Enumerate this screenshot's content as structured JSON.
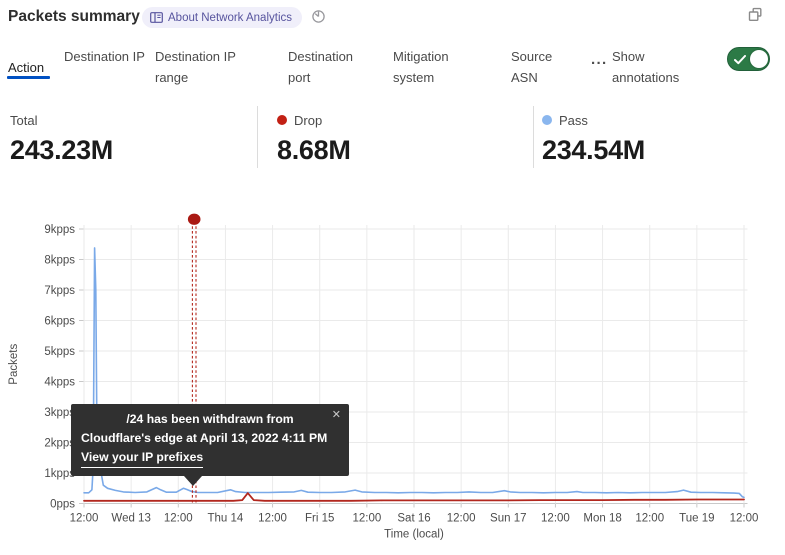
{
  "header": {
    "title": "Packets summary",
    "badge_label": "About Network Analytics"
  },
  "tabs": {
    "items": [
      {
        "label": "Action",
        "active": true
      },
      {
        "label": "Destination IP",
        "active": false
      },
      {
        "label": "Destination IP range",
        "active": false
      },
      {
        "label": "Destination port",
        "active": false
      },
      {
        "label": "Mitigation system",
        "active": false
      },
      {
        "label": "Source ASN",
        "active": false
      }
    ],
    "overflow_label": "···",
    "annotations_label": "Show annotations",
    "toggle_on": true,
    "accent_color": "#0051c3",
    "toggle_color": "#2c7a46"
  },
  "stats": [
    {
      "label": "Total",
      "value": "243.23M"
    },
    {
      "label": "Drop",
      "value": "8.68M",
      "dot_color": "#c22014"
    },
    {
      "label": "Pass",
      "value": "234.54M",
      "dot_color": "#8ab6ee"
    }
  ],
  "tooltip": {
    "line1": "/24 has been withdrawn from",
    "line2": "Cloudflare's edge at April 13, 2022 4:11 PM",
    "link": "View your IP prefixes",
    "close": "✕"
  },
  "chart_data": {
    "type": "line",
    "xlabel": "Time (local)",
    "ylabel": "Packets",
    "x_total_hours": 168,
    "x_tick_labels": [
      "12:00",
      "Wed 13",
      "12:00",
      "Thu 14",
      "12:00",
      "Fri 15",
      "12:00",
      "Sat 16",
      "12:00",
      "Sun 17",
      "12:00",
      "Mon 18",
      "12:00",
      "Tue 19",
      "12:00"
    ],
    "y_tick_labels": [
      "0pps",
      "1kpps",
      "2kpps",
      "3kpps",
      "4kpps",
      "5kpps",
      "6kpps",
      "7kpps",
      "8kpps",
      "9kpps"
    ],
    "ylim_kpps": [
      0,
      9
    ],
    "grid": true,
    "series": [
      {
        "name": "Pass",
        "color": "#7aa9e8",
        "width": 1.6,
        "points": [
          [
            0,
            0.35
          ],
          [
            1.2,
            0.35
          ],
          [
            2.0,
            0.45
          ],
          [
            2.35,
            1.2
          ],
          [
            2.7,
            8.38
          ],
          [
            3.0,
            7.0
          ],
          [
            3.3,
            2.0
          ],
          [
            3.8,
            1.0
          ],
          [
            4.3,
            1.05
          ],
          [
            4.9,
            0.6
          ],
          [
            6,
            0.5
          ],
          [
            8,
            0.43
          ],
          [
            10,
            0.38
          ],
          [
            13,
            0.36
          ],
          [
            16,
            0.38
          ],
          [
            18.4,
            0.52
          ],
          [
            19.5,
            0.45
          ],
          [
            21,
            0.37
          ],
          [
            23.5,
            0.37
          ],
          [
            25.3,
            0.5
          ],
          [
            26.2,
            0.46
          ],
          [
            27.5,
            0.39
          ],
          [
            29,
            0.36
          ],
          [
            31.5,
            0.36
          ],
          [
            34,
            0.36
          ],
          [
            37.3,
            0.45
          ],
          [
            38.6,
            0.39
          ],
          [
            41,
            0.36
          ],
          [
            44,
            0.36
          ],
          [
            47,
            0.36
          ],
          [
            50,
            0.37
          ],
          [
            53.5,
            0.38
          ],
          [
            55.3,
            0.43
          ],
          [
            57,
            0.37
          ],
          [
            60,
            0.36
          ],
          [
            63,
            0.36
          ],
          [
            66.5,
            0.38
          ],
          [
            69,
            0.44
          ],
          [
            70.7,
            0.38
          ],
          [
            74,
            0.36
          ],
          [
            77,
            0.36
          ],
          [
            80,
            0.35
          ],
          [
            83,
            0.36
          ],
          [
            86,
            0.36
          ],
          [
            89,
            0.35
          ],
          [
            92,
            0.36
          ],
          [
            95,
            0.36
          ],
          [
            98,
            0.38
          ],
          [
            101,
            0.36
          ],
          [
            104,
            0.36
          ],
          [
            107,
            0.42
          ],
          [
            108.5,
            0.38
          ],
          [
            111,
            0.36
          ],
          [
            114,
            0.36
          ],
          [
            117,
            0.35
          ],
          [
            120,
            0.36
          ],
          [
            123,
            0.36
          ],
          [
            125.5,
            0.39
          ],
          [
            127,
            0.36
          ],
          [
            130,
            0.36
          ],
          [
            133,
            0.35
          ],
          [
            136,
            0.36
          ],
          [
            139,
            0.35
          ],
          [
            142,
            0.36
          ],
          [
            145,
            0.36
          ],
          [
            148,
            0.36
          ],
          [
            151,
            0.39
          ],
          [
            152.6,
            0.44
          ],
          [
            154.5,
            0.37
          ],
          [
            157,
            0.36
          ],
          [
            160,
            0.36
          ],
          [
            163,
            0.35
          ],
          [
            165.5,
            0.34
          ],
          [
            166.8,
            0.33
          ],
          [
            167.6,
            0.22
          ],
          [
            168,
            0.2
          ]
        ]
      },
      {
        "name": "Drop",
        "color": "#b2271e",
        "width": 1.8,
        "points": [
          [
            0,
            0.09
          ],
          [
            8,
            0.09
          ],
          [
            16,
            0.09
          ],
          [
            24,
            0.09
          ],
          [
            32,
            0.09
          ],
          [
            38,
            0.09
          ],
          [
            40.3,
            0.11
          ],
          [
            41.7,
            0.34
          ],
          [
            43.2,
            0.11
          ],
          [
            46,
            0.09
          ],
          [
            52,
            0.09
          ],
          [
            60,
            0.09
          ],
          [
            68,
            0.09
          ],
          [
            76,
            0.1
          ],
          [
            84,
            0.1
          ],
          [
            92,
            0.1
          ],
          [
            100,
            0.1
          ],
          [
            108,
            0.1
          ],
          [
            116,
            0.11
          ],
          [
            124,
            0.11
          ],
          [
            132,
            0.11
          ],
          [
            140,
            0.12
          ],
          [
            148,
            0.12
          ],
          [
            156,
            0.13
          ],
          [
            162,
            0.13
          ],
          [
            168,
            0.13
          ]
        ]
      }
    ],
    "annotation": {
      "t_hours": 28.05,
      "marker_kpps": 9.32,
      "dot_color": "#aa1913",
      "line_color": "#b3271d"
    }
  }
}
